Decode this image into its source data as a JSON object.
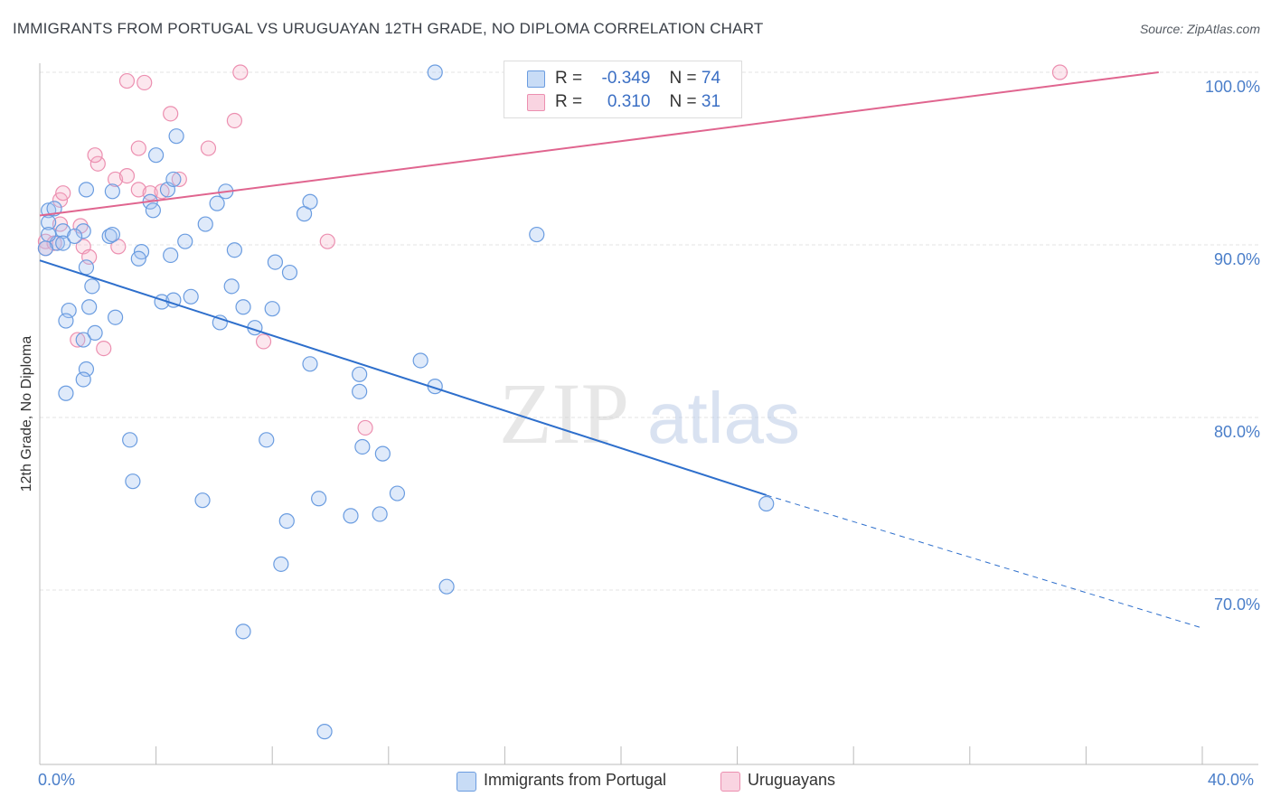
{
  "header": {
    "title": "IMMIGRANTS FROM PORTUGAL VS URUGUAYAN 12TH GRADE, NO DIPLOMA CORRELATION CHART",
    "source": "Source: ZipAtlas.com"
  },
  "legend": {
    "rows": [
      {
        "r_label": "R =",
        "r_value": "-0.349",
        "n_label": "N =",
        "n_value": "74",
        "color": "#6fa0e0"
      },
      {
        "r_label": "R =",
        "r_value": "0.310",
        "n_label": "N =",
        "n_value": "31",
        "color": "#ef90b0"
      }
    ]
  },
  "bottom_legend": {
    "series_a": "Immigrants from Portugal",
    "series_b": "Uruguayans"
  },
  "watermark": {
    "zip": "ZIP",
    "atlas": "atlas"
  },
  "colors": {
    "blue_fill": "rgba(163,196,240,0.35)",
    "blue_stroke": "#6a9ce0",
    "blue_line": "#2e6fcc",
    "pink_fill": "rgba(244,177,200,0.30)",
    "pink_stroke": "#ec8fb0",
    "pink_line": "#e0658f"
  },
  "chart_data": {
    "type": "scatter",
    "title": "IMMIGRANTS FROM PORTUGAL VS URUGUAYAN 12TH GRADE, NO DIPLOMA CORRELATION CHART",
    "xlabel": "",
    "ylabel": "12th Grade, No Diploma",
    "xlim": [
      0,
      40
    ],
    "ylim": [
      60.3,
      101.5
    ],
    "x_tick_labels": [
      "0.0%",
      "40.0%"
    ],
    "y_ticks": [
      70,
      80,
      90,
      100
    ],
    "y_tick_labels": [
      "70.0%",
      "80.0%",
      "90.0%",
      "100.0%"
    ],
    "grid": true,
    "legend_position": "top-center",
    "series": [
      {
        "name": "Immigrants from Portugal",
        "r": -0.349,
        "n": 74,
        "trend": {
          "x0": 0.0,
          "y0": 89.1,
          "x1": 25.0,
          "y1": 75.5,
          "dash_to_x": 40.0,
          "dash_to_y": 67.8
        },
        "points": [
          [
            0.3,
            92.0
          ],
          [
            0.5,
            92.1
          ],
          [
            0.3,
            91.3
          ],
          [
            0.8,
            90.8
          ],
          [
            0.6,
            90.1
          ],
          [
            0.8,
            90.1
          ],
          [
            1.5,
            90.8
          ],
          [
            1.2,
            90.5
          ],
          [
            0.3,
            90.6
          ],
          [
            0.2,
            89.8
          ],
          [
            1.6,
            88.7
          ],
          [
            2.4,
            90.5
          ],
          [
            2.5,
            90.6
          ],
          [
            3.5,
            89.6
          ],
          [
            3.4,
            89.2
          ],
          [
            4.5,
            89.4
          ],
          [
            5.0,
            90.2
          ],
          [
            6.7,
            89.7
          ],
          [
            8.1,
            89.0
          ],
          [
            8.6,
            88.4
          ],
          [
            2.5,
            93.1
          ],
          [
            1.6,
            93.2
          ],
          [
            3.8,
            92.5
          ],
          [
            4.4,
            93.2
          ],
          [
            4.6,
            93.8
          ],
          [
            3.9,
            92.0
          ],
          [
            5.7,
            91.2
          ],
          [
            6.1,
            92.4
          ],
          [
            6.4,
            93.1
          ],
          [
            9.1,
            91.8
          ],
          [
            9.3,
            92.5
          ],
          [
            4.0,
            95.2
          ],
          [
            4.7,
            96.3
          ],
          [
            1.8,
            87.6
          ],
          [
            1.0,
            86.2
          ],
          [
            1.7,
            86.4
          ],
          [
            0.9,
            85.6
          ],
          [
            2.6,
            85.8
          ],
          [
            4.2,
            86.7
          ],
          [
            4.6,
            86.8
          ],
          [
            5.2,
            87.0
          ],
          [
            6.6,
            87.6
          ],
          [
            7.0,
            86.4
          ],
          [
            8.0,
            86.3
          ],
          [
            6.2,
            85.5
          ],
          [
            7.4,
            85.2
          ],
          [
            1.9,
            84.9
          ],
          [
            1.5,
            84.5
          ],
          [
            9.3,
            83.1
          ],
          [
            11.0,
            82.5
          ],
          [
            11.0,
            81.5
          ],
          [
            13.1,
            83.3
          ],
          [
            13.6,
            81.8
          ],
          [
            1.6,
            82.8
          ],
          [
            1.5,
            82.2
          ],
          [
            0.9,
            81.4
          ],
          [
            3.1,
            78.7
          ],
          [
            7.8,
            78.7
          ],
          [
            11.1,
            78.3
          ],
          [
            11.8,
            77.9
          ],
          [
            3.2,
            76.3
          ],
          [
            5.6,
            75.2
          ],
          [
            9.6,
            75.3
          ],
          [
            12.3,
            75.6
          ],
          [
            8.5,
            74.0
          ],
          [
            10.7,
            74.3
          ],
          [
            11.7,
            74.4
          ],
          [
            8.3,
            71.5
          ],
          [
            14.0,
            70.2
          ],
          [
            7.0,
            67.6
          ],
          [
            9.8,
            61.8
          ],
          [
            13.6,
            100.0
          ],
          [
            17.1,
            90.6
          ],
          [
            25.0,
            75.0
          ]
        ]
      },
      {
        "name": "Uruguayans",
        "r": 0.31,
        "n": 31,
        "trend": {
          "x0": 0.0,
          "y0": 91.7,
          "x1": 38.5,
          "y1": 100.0
        },
        "points": [
          [
            0.2,
            90.2
          ],
          [
            0.7,
            91.2
          ],
          [
            0.5,
            90.1
          ],
          [
            0.2,
            89.8
          ],
          [
            1.4,
            91.1
          ],
          [
            0.7,
            92.6
          ],
          [
            0.8,
            93.0
          ],
          [
            1.5,
            89.9
          ],
          [
            1.7,
            89.3
          ],
          [
            2.7,
            89.9
          ],
          [
            2.0,
            94.7
          ],
          [
            1.9,
            95.2
          ],
          [
            2.6,
            93.8
          ],
          [
            3.0,
            94.0
          ],
          [
            3.4,
            95.6
          ],
          [
            3.4,
            93.2
          ],
          [
            3.8,
            93.0
          ],
          [
            4.2,
            93.1
          ],
          [
            4.8,
            93.8
          ],
          [
            4.5,
            97.6
          ],
          [
            5.8,
            95.6
          ],
          [
            6.7,
            97.2
          ],
          [
            3.0,
            99.5
          ],
          [
            3.6,
            99.4
          ],
          [
            6.9,
            100.0
          ],
          [
            2.2,
            84.0
          ],
          [
            1.3,
            84.5
          ],
          [
            7.7,
            84.4
          ],
          [
            9.9,
            90.2
          ],
          [
            11.2,
            79.4
          ],
          [
            35.1,
            100.0
          ]
        ]
      }
    ]
  }
}
